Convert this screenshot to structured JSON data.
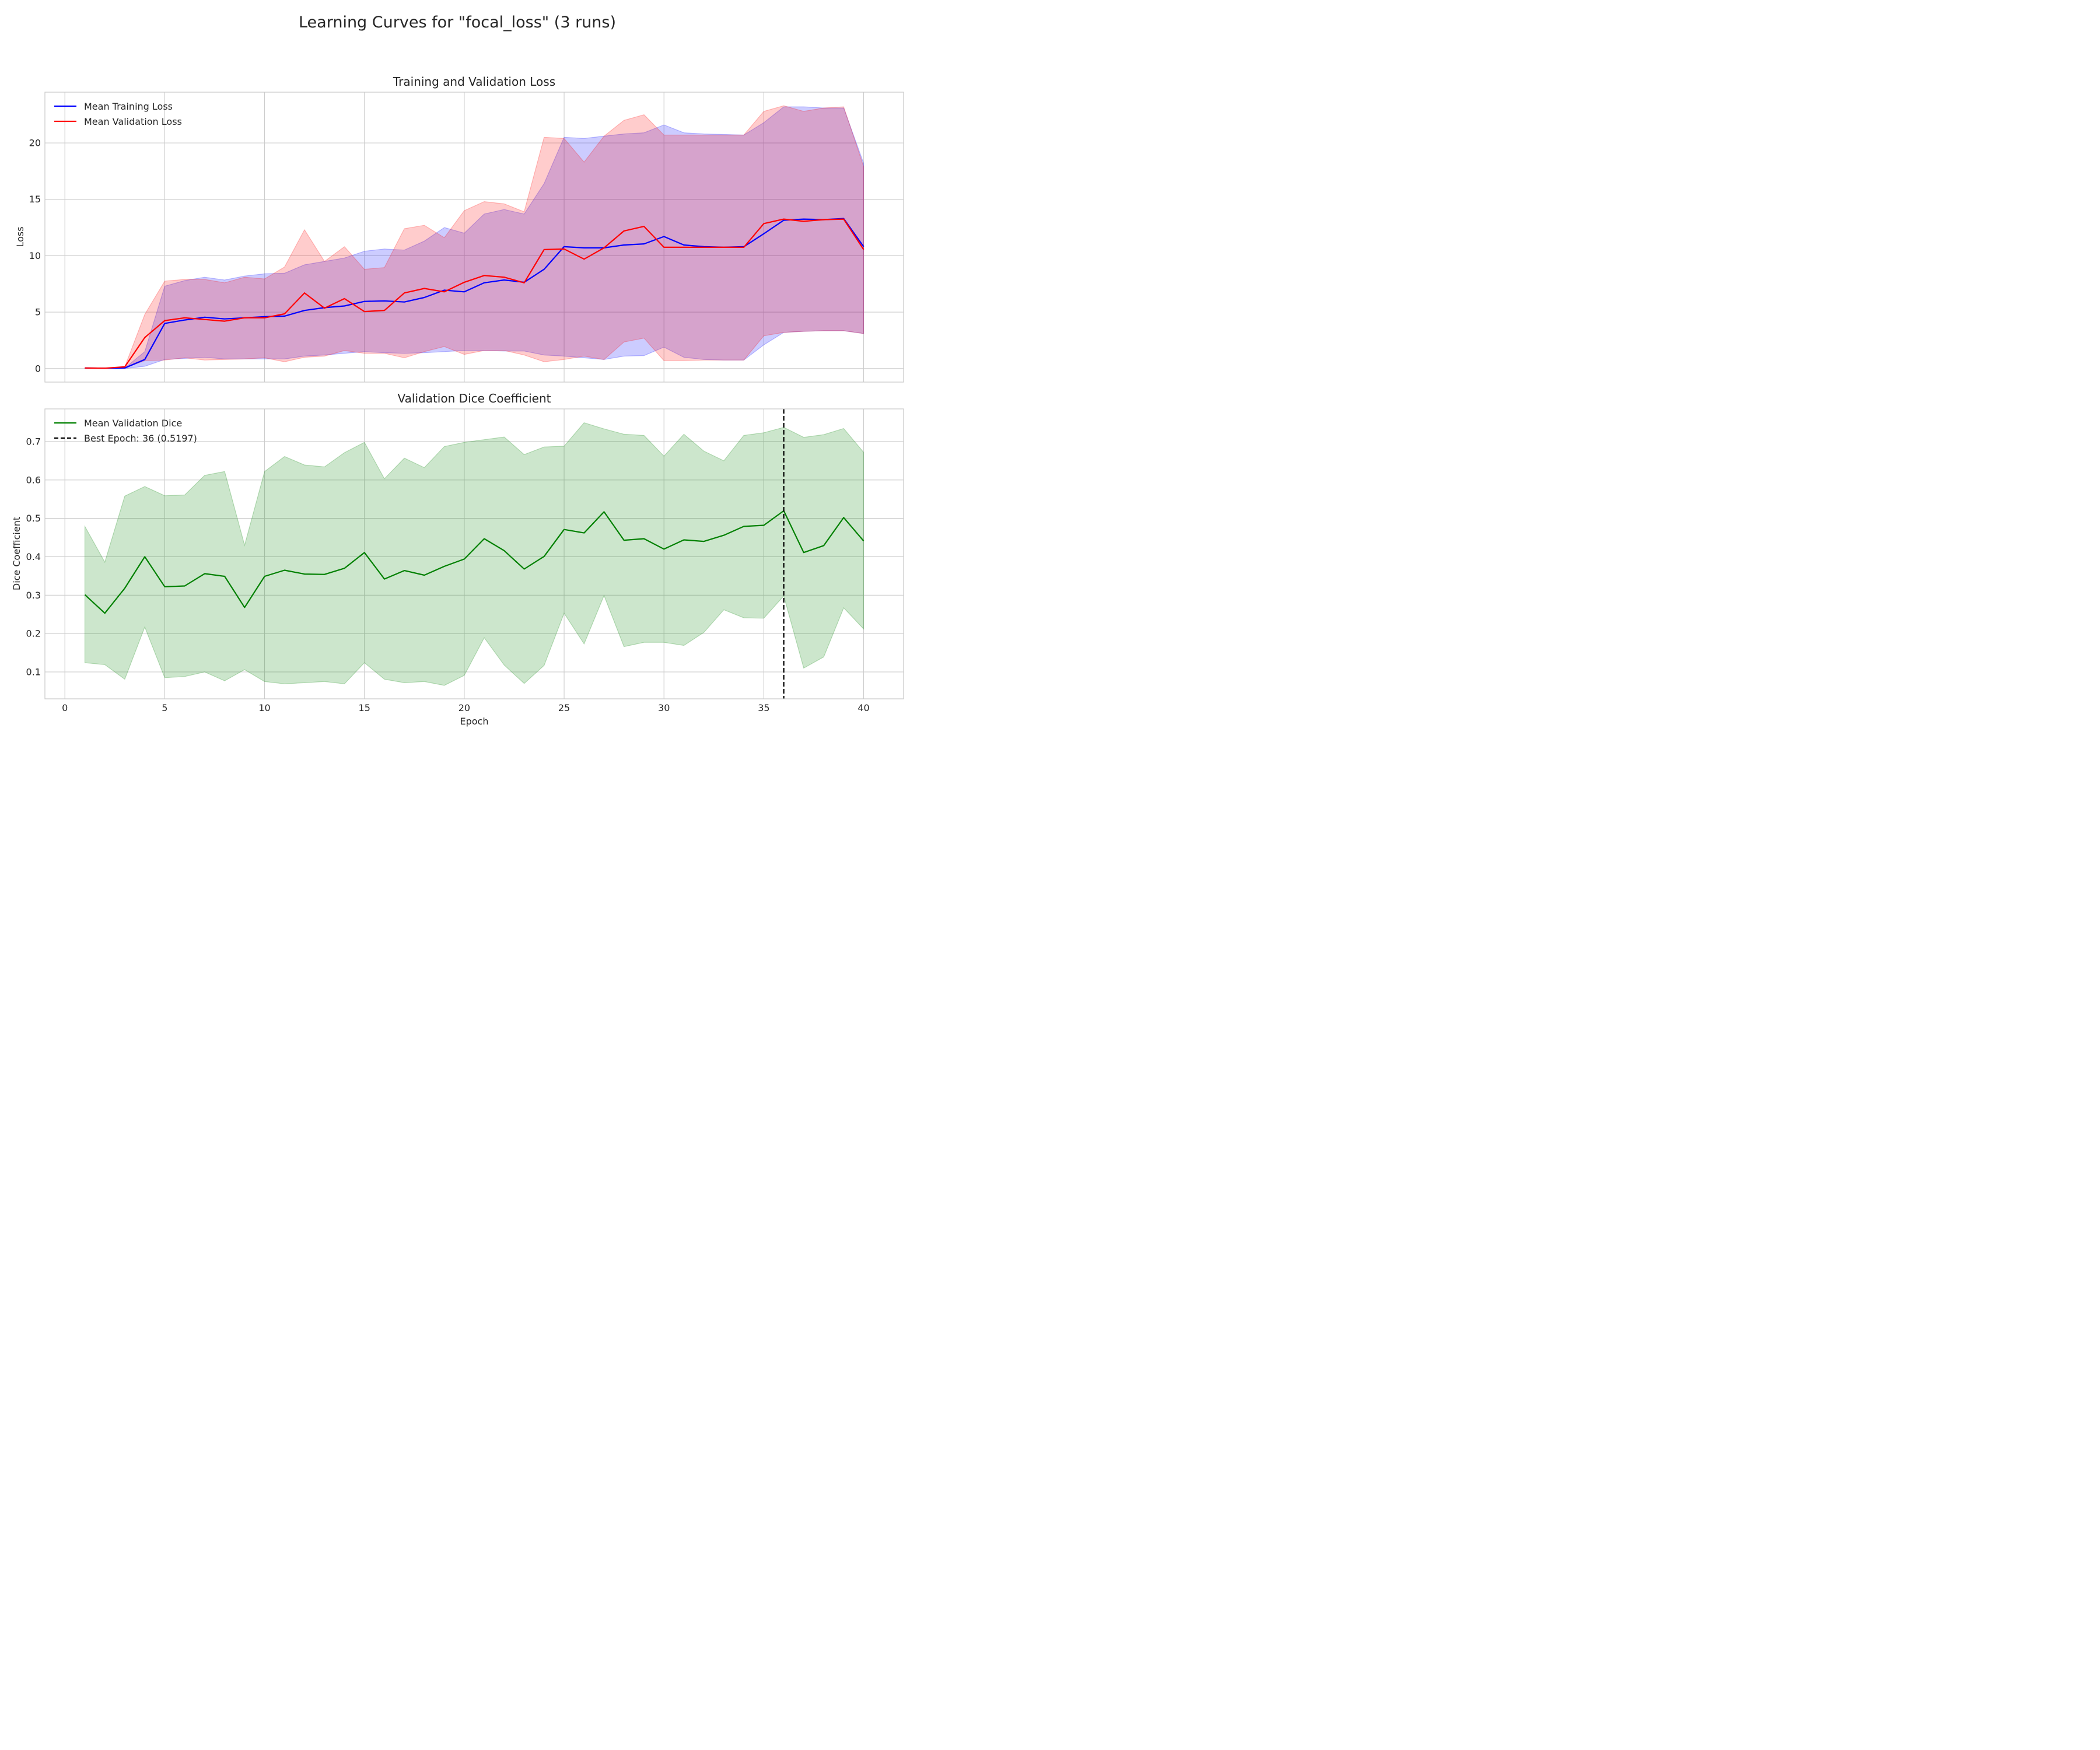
{
  "figure": {
    "suptitle": "Learning Curves for \"focal_loss\" (3 runs)"
  },
  "colors": {
    "train": "#0000ff",
    "val": "#ff0000",
    "dice": "#008000",
    "best": "#000000",
    "grid": "#cccccc",
    "frame": "#c8c8c8",
    "text": "#262626"
  },
  "chart_data": [
    {
      "type": "line",
      "title": "Training and Validation Loss",
      "xlabel": "",
      "ylabel": "Loss",
      "xlim": [
        -1,
        42
      ],
      "ylim": [
        -1.2,
        24.5
      ],
      "xticks": [
        0,
        5,
        10,
        15,
        20,
        25,
        30,
        35,
        40
      ],
      "yticks": [
        0,
        5,
        10,
        15,
        20
      ],
      "grid": true,
      "legend_position": "upper left",
      "x": [
        1,
        2,
        3,
        4,
        5,
        6,
        7,
        8,
        9,
        10,
        11,
        12,
        13,
        14,
        15,
        16,
        17,
        18,
        19,
        20,
        21,
        22,
        23,
        24,
        25,
        26,
        27,
        28,
        29,
        30,
        31,
        32,
        33,
        34,
        35,
        36,
        37,
        38,
        39,
        40
      ],
      "series": [
        {
          "name": "Mean Training Loss",
          "color_key": "train",
          "values": [
            0.05,
            0.03,
            0.05,
            0.8,
            4.0,
            4.3,
            4.55,
            4.4,
            4.5,
            4.6,
            4.65,
            5.15,
            5.4,
            5.55,
            5.95,
            6.0,
            5.9,
            6.3,
            6.95,
            6.8,
            7.6,
            7.85,
            7.65,
            8.8,
            10.8,
            10.7,
            10.7,
            10.95,
            11.05,
            11.7,
            10.95,
            10.8,
            10.75,
            10.8,
            11.95,
            13.15,
            13.25,
            13.2,
            13.3,
            10.8
          ],
          "band_upper": [
            0.05,
            0.03,
            0.05,
            1.5,
            7.3,
            7.8,
            8.1,
            7.85,
            8.2,
            8.4,
            8.45,
            9.2,
            9.5,
            9.8,
            10.4,
            10.6,
            10.5,
            11.3,
            12.5,
            12.0,
            13.7,
            14.1,
            13.7,
            16.4,
            20.5,
            20.4,
            20.6,
            20.8,
            20.9,
            21.6,
            20.9,
            20.8,
            20.75,
            20.7,
            21.8,
            23.2,
            23.2,
            23.1,
            23.1,
            18.2
          ],
          "band_lower": [
            0.0,
            0.0,
            0.0,
            0.2,
            0.8,
            0.9,
            1.0,
            0.85,
            0.85,
            0.85,
            0.85,
            1.1,
            1.2,
            1.35,
            1.5,
            1.4,
            1.35,
            1.4,
            1.5,
            1.6,
            1.6,
            1.55,
            1.55,
            1.2,
            1.1,
            0.95,
            0.8,
            1.1,
            1.15,
            1.9,
            1.0,
            0.8,
            0.75,
            0.75,
            2.1,
            3.2,
            3.3,
            3.35,
            3.35,
            3.1
          ]
        },
        {
          "name": "Mean Validation Loss",
          "color_key": "val",
          "values": [
            0.05,
            0.03,
            0.15,
            2.75,
            4.25,
            4.5,
            4.35,
            4.2,
            4.5,
            4.5,
            4.85,
            6.7,
            5.35,
            6.2,
            5.05,
            5.15,
            6.7,
            7.1,
            6.8,
            7.65,
            8.25,
            8.1,
            7.6,
            10.55,
            10.6,
            9.7,
            10.7,
            12.2,
            12.6,
            10.75,
            10.75,
            10.75,
            10.75,
            10.75,
            12.85,
            13.25,
            13.05,
            13.2,
            13.25,
            10.55
          ],
          "band_upper": [
            0.05,
            0.03,
            0.15,
            4.8,
            7.75,
            7.9,
            7.9,
            7.6,
            8.1,
            7.95,
            9.0,
            12.3,
            9.5,
            10.8,
            8.8,
            8.95,
            12.4,
            12.7,
            11.6,
            14.0,
            14.8,
            14.6,
            13.9,
            20.5,
            20.4,
            18.3,
            20.6,
            22.0,
            22.5,
            20.7,
            20.7,
            20.7,
            20.7,
            20.7,
            22.8,
            23.3,
            22.8,
            23.1,
            23.2,
            17.9
          ],
          "band_lower": [
            0.0,
            0.0,
            0.05,
            0.7,
            0.75,
            0.95,
            0.75,
            0.8,
            0.85,
            0.95,
            0.6,
            1.0,
            1.1,
            1.6,
            1.35,
            1.35,
            0.95,
            1.5,
            1.95,
            1.25,
            1.6,
            1.6,
            1.2,
            0.6,
            0.8,
            1.1,
            0.8,
            2.35,
            2.7,
            0.7,
            0.7,
            0.75,
            0.75,
            0.75,
            2.9,
            3.2,
            3.3,
            3.35,
            3.35,
            3.1
          ]
        }
      ]
    },
    {
      "type": "line",
      "title": "Validation Dice Coefficient",
      "xlabel": "Epoch",
      "ylabel": "Dice Coefficient",
      "xlim": [
        -1,
        42
      ],
      "ylim": [
        0.03,
        0.785
      ],
      "xticks": [
        0,
        5,
        10,
        15,
        20,
        25,
        30,
        35,
        40
      ],
      "yticks": [
        0.1,
        0.2,
        0.3,
        0.4,
        0.5,
        0.6,
        0.7
      ],
      "grid": true,
      "legend_position": "upper left",
      "x": [
        1,
        2,
        3,
        4,
        5,
        6,
        7,
        8,
        9,
        10,
        11,
        12,
        13,
        14,
        15,
        16,
        17,
        18,
        19,
        20,
        21,
        22,
        23,
        24,
        25,
        26,
        27,
        28,
        29,
        30,
        31,
        32,
        33,
        34,
        35,
        36,
        37,
        38,
        39,
        40
      ],
      "series": [
        {
          "name": "Mean Validation Dice",
          "color_key": "dice",
          "values": [
            0.301,
            0.253,
            0.318,
            0.4,
            0.322,
            0.324,
            0.356,
            0.349,
            0.268,
            0.349,
            0.365,
            0.355,
            0.354,
            0.37,
            0.411,
            0.342,
            0.364,
            0.352,
            0.375,
            0.394,
            0.447,
            0.416,
            0.368,
            0.401,
            0.471,
            0.462,
            0.517,
            0.443,
            0.447,
            0.42,
            0.444,
            0.44,
            0.456,
            0.479,
            0.482,
            0.5197,
            0.411,
            0.429,
            0.502,
            0.441
          ],
          "band_upper": [
            0.479,
            0.386,
            0.558,
            0.583,
            0.559,
            0.561,
            0.612,
            0.622,
            0.43,
            0.622,
            0.661,
            0.639,
            0.634,
            0.671,
            0.698,
            0.603,
            0.657,
            0.632,
            0.687,
            0.698,
            0.705,
            0.712,
            0.666,
            0.686,
            0.688,
            0.749,
            0.733,
            0.719,
            0.716,
            0.662,
            0.719,
            0.675,
            0.65,
            0.716,
            0.723,
            0.737,
            0.711,
            0.718,
            0.734,
            0.672
          ],
          "band_lower": [
            0.124,
            0.119,
            0.081,
            0.217,
            0.085,
            0.088,
            0.1,
            0.077,
            0.106,
            0.075,
            0.069,
            0.072,
            0.075,
            0.069,
            0.124,
            0.081,
            0.072,
            0.075,
            0.065,
            0.091,
            0.189,
            0.118,
            0.07,
            0.117,
            0.253,
            0.173,
            0.299,
            0.166,
            0.177,
            0.177,
            0.169,
            0.203,
            0.262,
            0.241,
            0.24,
            0.298,
            0.11,
            0.139,
            0.267,
            0.212
          ]
        }
      ],
      "best_epoch": {
        "label": "Best Epoch: 36 (0.5197)",
        "epoch": 36,
        "value": 0.5197,
        "color_key": "best"
      }
    }
  ]
}
